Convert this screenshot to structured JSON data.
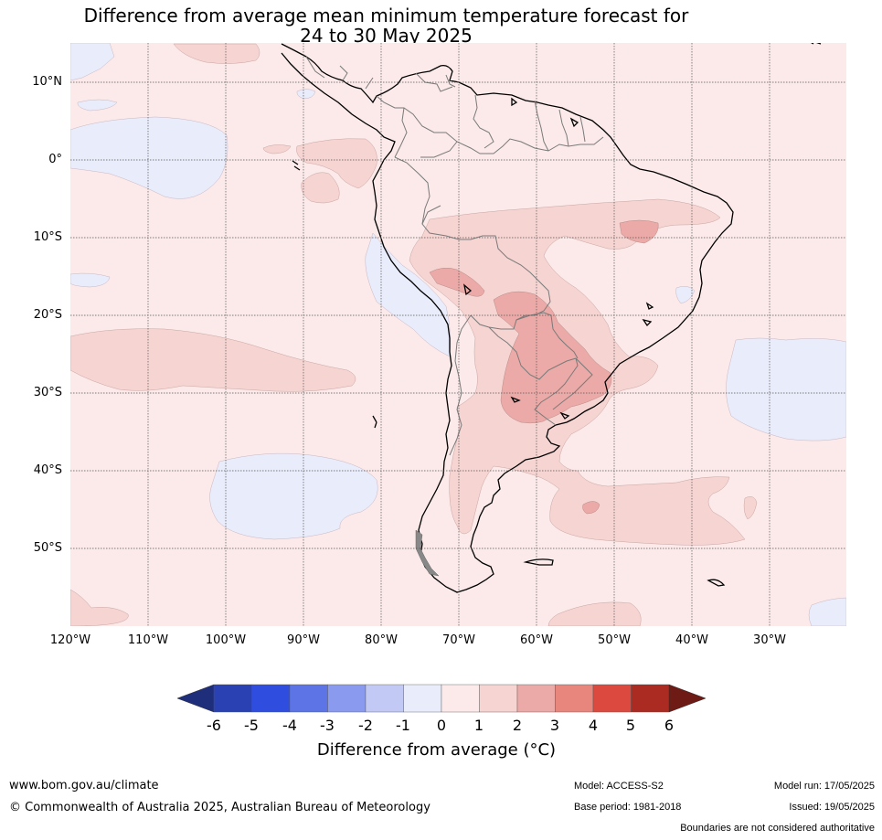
{
  "title": {
    "line1": "Difference from average mean minimum temperature forecast for",
    "line2": "24 to 30 May 2025"
  },
  "map": {
    "lat_labels": [
      "10°N",
      "0°",
      "10°S",
      "20°S",
      "30°S",
      "40°S",
      "50°S"
    ],
    "lon_labels": [
      "120°W",
      "110°W",
      "100°W",
      "90°W",
      "80°W",
      "70°W",
      "60°W",
      "50°W",
      "40°W",
      "30°W"
    ],
    "colors": {
      "bin_0_1": "#fbeae9",
      "bin_1_2": "#f5d4d2",
      "bin_2_3": "#ebaaa7",
      "bin_m1_0": "#e9ecfb",
      "coast": "#000000",
      "border": "#7a7a7a",
      "grid": "#555555"
    }
  },
  "colorbar": {
    "ticks": [
      "-6",
      "-5",
      "-4",
      "-3",
      "-2",
      "-1",
      "0",
      "1",
      "2",
      "3",
      "4",
      "5",
      "6"
    ],
    "colors": [
      "#1f2e7a",
      "#2a41b4",
      "#2f4ee0",
      "#5c74e6",
      "#8a9bef",
      "#c2c9f4",
      "#e9ecfb",
      "#fbeae9",
      "#f5d4d2",
      "#ebaaa7",
      "#e8867e",
      "#dc4a3f",
      "#ab2a22",
      "#6e1a15"
    ],
    "label": "Difference from average (°C)"
  },
  "footer": {
    "url": "www.bom.gov.au/climate",
    "copyright": "© Commonwealth of Australia 2025, Australian Bureau of Meteorology",
    "model": "Model: ACCESS-S2",
    "base_period": "Base period: 1981-2018",
    "model_run": "Model run: 17/05/2025",
    "issued": "Issued: 19/05/2025",
    "disclaimer": "Boundaries are not considered authoritative"
  }
}
